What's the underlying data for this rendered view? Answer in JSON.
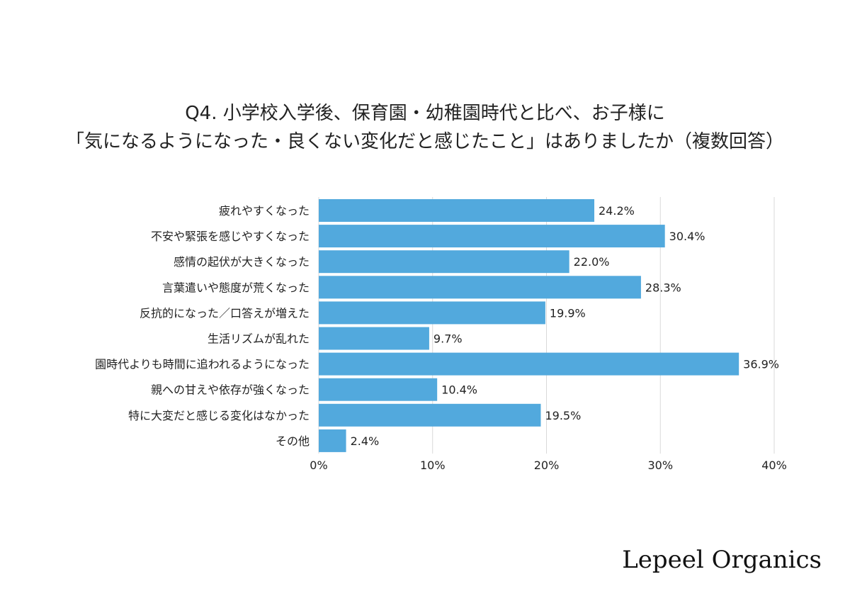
{
  "chart_data": {
    "type": "bar",
    "orientation": "horizontal",
    "title_lines": [
      "Q4. 小学校入学後、保育園・幼稚園時代と比べ、お子様に",
      "「気になるようになった・良くない変化だと感じたこと」はありましたか（複数回答）"
    ],
    "categories": [
      "疲れやすくなった",
      "不安や緊張を感じやすくなった",
      "感情の起伏が大きくなった",
      "言葉遣いや態度が荒くなった",
      "反抗的になった／口答えが増えた",
      "生活リズムが乱れた",
      "園時代よりも時間に追われるようになった",
      "親への甘えや依存が強くなった",
      "特に大変だと感じる変化はなかった",
      "その他"
    ],
    "values": [
      24.2,
      30.4,
      22.0,
      28.3,
      19.9,
      9.7,
      36.9,
      10.4,
      19.5,
      2.4
    ],
    "value_labels": [
      "24.2%",
      "30.4%",
      "22.0%",
      "28.3%",
      "19.9%",
      "9.7%",
      "36.9%",
      "10.4%",
      "19.5%",
      "2.4%"
    ],
    "xlim": [
      0,
      40
    ],
    "xticks": [
      0,
      10,
      20,
      30,
      40
    ],
    "xtick_labels": [
      "0%",
      "10%",
      "20%",
      "30%",
      "40%"
    ],
    "grid": true,
    "legend": false,
    "bar_color": "#52a9dd",
    "grid_color": "#d9d9d9"
  },
  "brand": "Lepeel Organics"
}
